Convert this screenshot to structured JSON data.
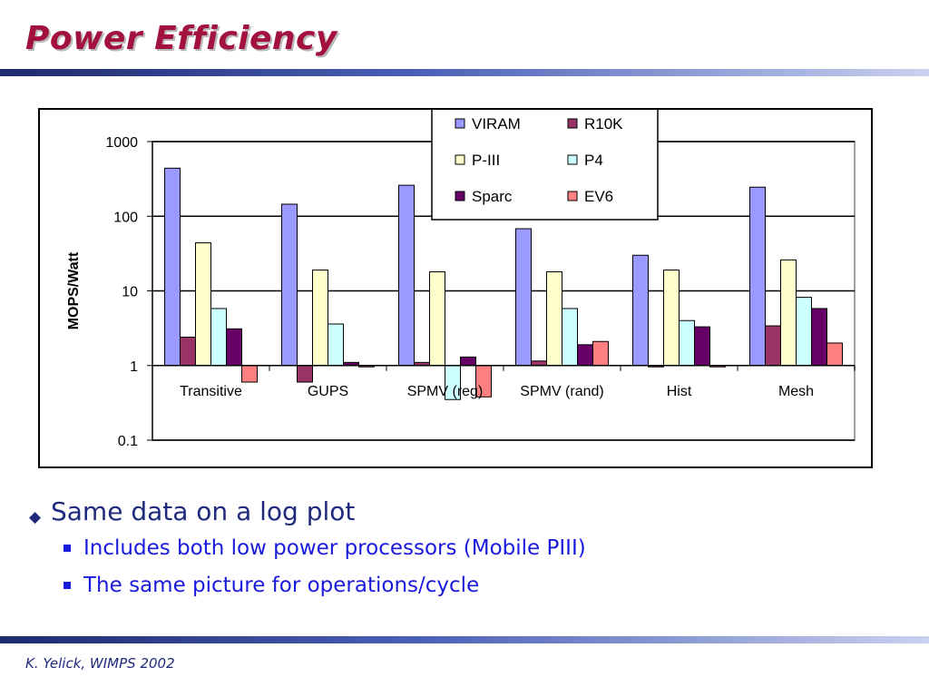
{
  "slide": {
    "title": "Power Efficiency",
    "bullets": [
      {
        "text": "Same data on a log plot",
        "level": 1
      },
      {
        "text": "Includes both low power processors (Mobile PIII)",
        "level": 2
      },
      {
        "text": "The same picture for operations/cycle",
        "level": 2
      }
    ],
    "footer": "K. Yelick, WIMPS 2002",
    "colors": {
      "title": "#a3123e",
      "bullet": "#1f2a7c",
      "sub_bullet": "#1a1add"
    }
  },
  "chart_data": {
    "type": "bar",
    "scale": "log",
    "title": "",
    "xlabel": "",
    "ylabel": "MOPS/Watt",
    "ylim": [
      0.1,
      1000
    ],
    "yticks": [
      "1000",
      "100",
      "10",
      "1",
      "0.1"
    ],
    "grid": true,
    "legend_position": "top-center",
    "categories": [
      "Transitive",
      "GUPS",
      "SPMV (reg)",
      "SPMV (rand)",
      "Hist",
      "Mesh"
    ],
    "series": [
      {
        "name": "VIRAM",
        "color": "#9999ff",
        "values": [
          440,
          145,
          260,
          68,
          30,
          245
        ]
      },
      {
        "name": "R10K",
        "color": "#993366",
        "values": [
          2.4,
          0.6,
          1.1,
          1.15,
          1,
          3.4
        ]
      },
      {
        "name": "P-III",
        "color": "#ffffcc",
        "values": [
          44,
          19,
          18,
          18,
          19,
          26
        ]
      },
      {
        "name": "P4",
        "color": "#ccffff",
        "values": [
          5.8,
          3.6,
          0.35,
          5.8,
          4,
          8.2
        ]
      },
      {
        "name": "Sparc",
        "color": "#660066",
        "values": [
          3.1,
          1.1,
          1.3,
          1.9,
          3.3,
          5.8
        ]
      },
      {
        "name": "EV6",
        "color": "#ff8080",
        "values": [
          0.6,
          0.97,
          0.38,
          2.1,
          0.98,
          2
        ]
      }
    ]
  }
}
